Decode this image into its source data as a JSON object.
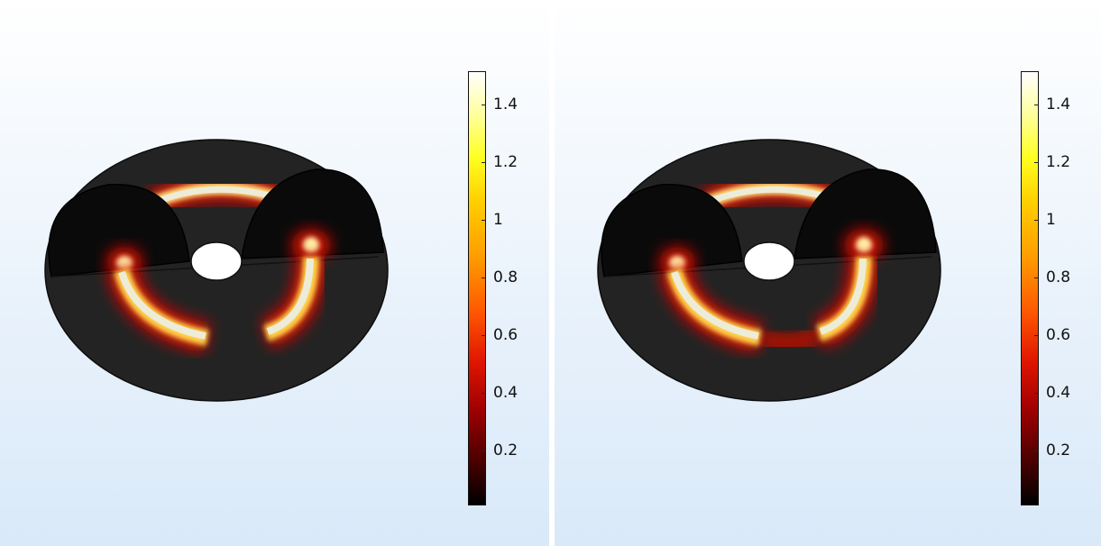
{
  "colorbar": {
    "colormap": "thermal",
    "ticks": [
      "1.4",
      "1.2",
      "1",
      "0.8",
      "0.6",
      "0.4",
      "0.2"
    ],
    "tick_values": [
      1.4,
      1.2,
      1.0,
      0.8,
      0.6,
      0.4,
      0.2
    ],
    "range": [
      0,
      1.5
    ]
  },
  "colors": {
    "background_top": "#ffffff",
    "background_bottom": "#d9e9f9",
    "surface": "#222222"
  },
  "panels": [
    {
      "id": "left",
      "description_visible": false
    },
    {
      "id": "right",
      "description_visible": false
    }
  ]
}
